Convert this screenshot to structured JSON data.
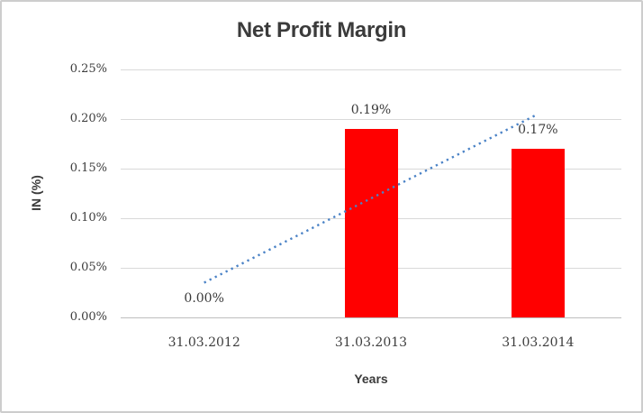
{
  "chart_data": {
    "type": "bar",
    "title": "Net Profit Margin",
    "xlabel": "Years",
    "ylabel": "IN (%)",
    "categories": [
      "31.03.2012",
      "31.03.2013",
      "31.03.2014"
    ],
    "values": [
      0.0,
      0.19,
      0.17
    ],
    "data_labels": [
      "0.00%",
      "0.19%",
      "0.17%"
    ],
    "ylim": [
      0,
      0.25
    ],
    "ytick_labels": [
      "0.25%",
      "0.20%",
      "0.15%",
      "0.10%",
      "0.05%",
      "0.00%"
    ],
    "ytick_values": [
      0.25,
      0.2,
      0.15,
      0.1,
      0.05,
      0.0
    ],
    "grid": true,
    "legend_position": "none",
    "bar_color": "#ff0000",
    "trendline": {
      "type": "linear",
      "style": "dotted",
      "color": "#4a82c6",
      "start_value": 0.035,
      "end_value": 0.205
    },
    "colors": {
      "text": "#3b3b3b",
      "gridline": "#d9d9d9",
      "axis_line": "#bfbfbf",
      "chart_border": "#cdcdcd",
      "background": "#ffffff"
    }
  }
}
